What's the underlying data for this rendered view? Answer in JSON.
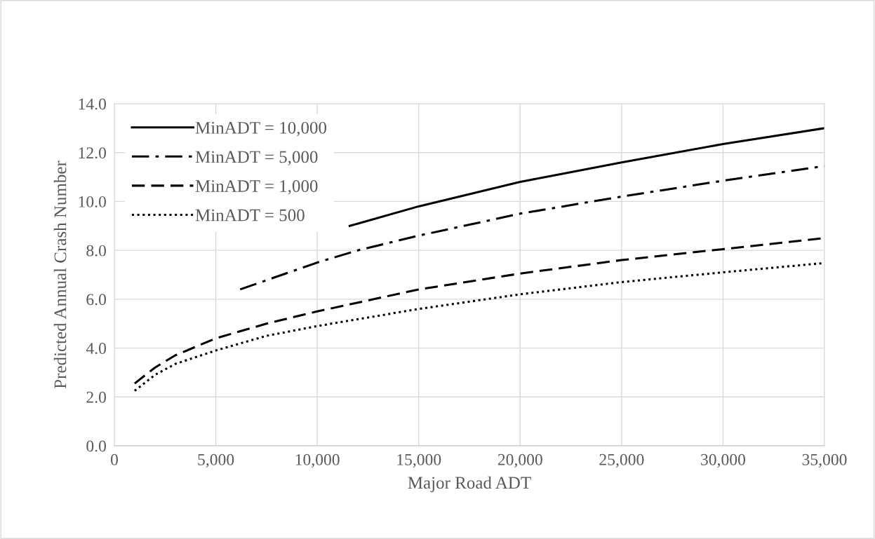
{
  "chart_data": {
    "type": "line",
    "xlabel": "Major Road ADT",
    "ylabel": "Predicted Annual Crash Number",
    "xlim": [
      0,
      35000
    ],
    "xticks": [
      {
        "value": 0,
        "label": "0"
      },
      {
        "value": 5000,
        "label": "5,000"
      },
      {
        "value": 10000,
        "label": "10,000"
      },
      {
        "value": 15000,
        "label": "15,000"
      },
      {
        "value": 20000,
        "label": "20,000"
      },
      {
        "value": 25000,
        "label": "25,000"
      },
      {
        "value": 30000,
        "label": "30,000"
      },
      {
        "value": 35000,
        "label": "35,000"
      }
    ],
    "ylim": [
      0,
      14
    ],
    "yticks": [
      {
        "value": 0,
        "label": "0.0"
      },
      {
        "value": 2,
        "label": "2.0"
      },
      {
        "value": 4,
        "label": "4.0"
      },
      {
        "value": 6,
        "label": "6.0"
      },
      {
        "value": 8,
        "label": "8.0"
      },
      {
        "value": 10,
        "label": "10.0"
      },
      {
        "value": 12,
        "label": "12.0"
      },
      {
        "value": 14,
        "label": "14.0"
      }
    ],
    "grid": true,
    "legend": "top left",
    "marker": "none",
    "series": [
      {
        "name": "MinADT = 10,000",
        "color": "#000000",
        "line_style": "solid",
        "x": [
          11600,
          15000,
          20000,
          25000,
          30000,
          35000
        ],
        "values": [
          9.0,
          9.8,
          10.8,
          11.6,
          12.35,
          13.0
        ]
      },
      {
        "name": "MinADT = 5,000",
        "color": "#000000",
        "line_style": "dashdot",
        "x": [
          6200,
          10000,
          12000,
          15000,
          20000,
          25000,
          30000,
          35000
        ],
        "values": [
          6.4,
          7.5,
          8.0,
          8.6,
          9.5,
          10.2,
          10.85,
          11.45
        ]
      },
      {
        "name": "MinADT = 1,000",
        "color": "#000000",
        "line_style": "dashed",
        "x": [
          1000,
          2000,
          3000,
          5000,
          7500,
          10000,
          15000,
          20000,
          25000,
          30000,
          35000
        ],
        "values": [
          2.55,
          3.2,
          3.7,
          4.4,
          5.0,
          5.5,
          6.4,
          7.05,
          7.6,
          8.05,
          8.5
        ]
      },
      {
        "name": "MinADT = 500",
        "color": "#000000",
        "line_style": "dotted",
        "x": [
          1000,
          2000,
          3000,
          5000,
          7500,
          10000,
          15000,
          20000,
          25000,
          30000,
          35000
        ],
        "values": [
          2.25,
          2.9,
          3.35,
          3.9,
          4.5,
          4.9,
          5.6,
          6.2,
          6.7,
          7.1,
          7.48
        ]
      }
    ]
  }
}
